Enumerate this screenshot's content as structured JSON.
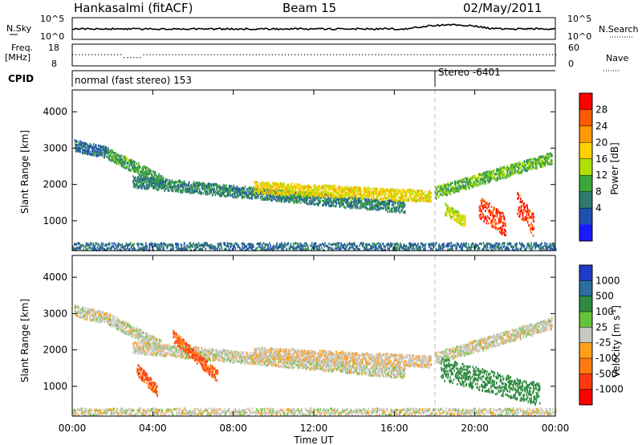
{
  "header": {
    "station": "Hankasalmi (fitACF)",
    "beam": "Beam 15",
    "date": "02/May/2011"
  },
  "noise_panel": {
    "left_label": "N.Sky",
    "right_label": "N.Search",
    "left_ticks": [
      "10^5",
      "10^0"
    ],
    "right_ticks": [
      "10^5",
      "10^0"
    ]
  },
  "freq_panel": {
    "left_label_top": "Freq.",
    "left_label_bottom": "[MHz]",
    "right_label": "Nave",
    "left_ticks": [
      "18",
      "8"
    ],
    "right_ticks": [
      "60",
      "0"
    ]
  },
  "cpid_panel": {
    "label": "CPID",
    "modes": [
      {
        "label": "normal (fast stereo) 153",
        "start_hour": 0
      },
      {
        "label": "Stereo -6401",
        "start_hour": 18
      }
    ]
  },
  "power_panel": {
    "ylabel": "Slant Range [km]",
    "cbar_label": "Power [dB]",
    "cbar_ticks": [
      "28",
      "24",
      "20",
      "16",
      "12",
      "8",
      "4"
    ],
    "cbar_colors": [
      "#ff0000",
      "#ff5a00",
      "#ff9a00",
      "#ffd200",
      "#b0e000",
      "#3aa83a",
      "#2e7b6e",
      "#2050b0",
      "#1a1aff"
    ]
  },
  "velocity_panel": {
    "ylabel": "Slant Range [km]",
    "cbar_label": "Velocity [m s",
    "cbar_label_sup": "-1",
    "cbar_label_end": "]",
    "cbar_ticks": [
      "1000",
      "500",
      "100",
      "25",
      "-25",
      "-100",
      "-500",
      "-1000"
    ],
    "cbar_colors": [
      "#1e3cc8",
      "#2c6ea0",
      "#2e8a40",
      "#66c23a",
      "#c8c8c0",
      "#ff9f1a",
      "#ff7a10",
      "#ff3a10",
      "#ff0000"
    ]
  },
  "xaxis": {
    "label": "Time UT",
    "ticks": [
      "00:00",
      "04:00",
      "08:00",
      "12:00",
      "16:00",
      "20:00",
      "00:00"
    ]
  },
  "yaxis": {
    "ticks": [
      "4000",
      "3000",
      "2000",
      "1000"
    ]
  },
  "chart_data": [
    {
      "type": "heatmap",
      "title": "Hankasalmi (fitACF) Beam 15 02/May/2011",
      "xlabel": "Time UT",
      "ylabel": "Slant Range [km]",
      "xlim": [
        0,
        24
      ],
      "ylim": [
        180,
        4600
      ],
      "colorbar": {
        "label": "Power [dB]",
        "range": [
          0,
          30
        ]
      },
      "features": [
        {
          "name": "far band",
          "time_start": 0.1,
          "time_end": 1.7,
          "range_start": 3100,
          "range_end": 2900,
          "value": 6
        },
        {
          "name": "descending band",
          "time_start": 1.7,
          "time_end": 4.5,
          "range_start": 2900,
          "range_end": 2100,
          "value": 10
        },
        {
          "name": "lower arc",
          "time_start": 3,
          "time_end": 16.5,
          "range_start": 2100,
          "range_end": 1400,
          "value": 8
        },
        {
          "name": "main band",
          "time_start": 9,
          "time_end": 17.8,
          "range_start": 1950,
          "range_end": 1700,
          "value": 18
        },
        {
          "name": "rising band",
          "time_start": 18,
          "time_end": 23.8,
          "range_start": 1800,
          "range_end": 2750,
          "value": 12
        },
        {
          "name": "near patch 1",
          "time_start": 18.5,
          "time_end": 19.5,
          "range_start": 1350,
          "range_end": 1000,
          "value": 16
        },
        {
          "name": "near patch 2",
          "time_start": 20.2,
          "time_end": 21.5,
          "range_start": 1400,
          "range_end": 900,
          "value": 28
        },
        {
          "name": "near patch 3",
          "time_start": 22.1,
          "time_end": 22.9,
          "range_start": 1500,
          "range_end": 900,
          "value": 28
        },
        {
          "name": "ground band",
          "time_start": 0,
          "time_end": 24,
          "range_start": 300,
          "range_end": 300,
          "value": 6
        }
      ]
    },
    {
      "type": "heatmap",
      "title": "",
      "xlabel": "Time UT",
      "ylabel": "Slant Range [km]",
      "xlim": [
        0,
        24
      ],
      "ylim": [
        180,
        4600
      ],
      "colorbar": {
        "label": "Velocity [m s-1]",
        "range": [
          -1000,
          1000
        ]
      },
      "features": [
        {
          "name": "far band",
          "time_start": 0.1,
          "time_end": 1.7,
          "range_start": 3100,
          "range_end": 2900,
          "value": 0
        },
        {
          "name": "descending band",
          "time_start": 1.7,
          "time_end": 4.5,
          "range_start": 2900,
          "range_end": 2100,
          "value": 0
        },
        {
          "name": "lower arc",
          "time_start": 3,
          "time_end": 16.5,
          "range_start": 2100,
          "range_end": 1400,
          "value": 0
        },
        {
          "name": "main band",
          "time_start": 9,
          "time_end": 17.8,
          "range_start": 1950,
          "range_end": 1700,
          "value": -25
        },
        {
          "name": "rising band",
          "time_start": 18,
          "time_end": 23.8,
          "range_start": 1800,
          "range_end": 2750,
          "value": 0
        },
        {
          "name": "westward flow 1",
          "time_start": 3.2,
          "time_end": 4.2,
          "range_start": 1500,
          "range_end": 900,
          "value": -300
        },
        {
          "name": "westward flow 2",
          "time_start": 5,
          "time_end": 7.2,
          "range_start": 2400,
          "range_end": 1300,
          "value": -300
        },
        {
          "name": "eastward flow",
          "time_start": 18.3,
          "time_end": 23.2,
          "range_start": 1500,
          "range_end": 800,
          "value": 200
        },
        {
          "name": "ground band",
          "time_start": 0,
          "time_end": 24,
          "range_start": 300,
          "range_end": 300,
          "value": 0
        }
      ]
    }
  ]
}
